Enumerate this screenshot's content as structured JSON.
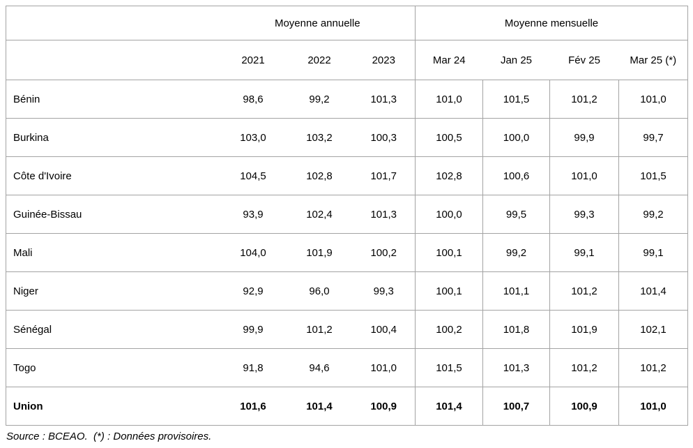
{
  "table": {
    "header": {
      "group_annual": "Moyenne annuelle",
      "group_monthly": "Moyenne mensuelle",
      "columns": [
        "2021",
        "2022",
        "2023",
        "Mar 24",
        "Jan 25",
        "Fév 25",
        "Mar 25 (*)"
      ]
    },
    "rows": [
      {
        "name": "Bénin",
        "values": [
          "98,6",
          "99,2",
          "101,3",
          "101,0",
          "101,5",
          "101,2",
          "101,0"
        ]
      },
      {
        "name": "Burkina",
        "values": [
          "103,0",
          "103,2",
          "100,3",
          "100,5",
          "100,0",
          "99,9",
          "99,7"
        ]
      },
      {
        "name": "Côte d'Ivoire",
        "values": [
          "104,5",
          "102,8",
          "101,7",
          "102,8",
          "100,6",
          "101,0",
          "101,5"
        ]
      },
      {
        "name": "Guinée-Bissau",
        "values": [
          "93,9",
          "102,4",
          "101,3",
          "100,0",
          "99,5",
          "99,3",
          "99,2"
        ]
      },
      {
        "name": "Mali",
        "values": [
          "104,0",
          "101,9",
          "100,2",
          "100,1",
          "99,2",
          "99,1",
          "99,1"
        ]
      },
      {
        "name": "Niger",
        "values": [
          "92,9",
          "96,0",
          "99,3",
          "100,1",
          "101,1",
          "101,2",
          "101,4"
        ]
      },
      {
        "name": "Sénégal",
        "values": [
          "99,9",
          "101,2",
          "100,4",
          "100,2",
          "101,8",
          "101,9",
          "102,1"
        ]
      },
      {
        "name": "Togo",
        "values": [
          "91,8",
          "94,6",
          "101,0",
          "101,5",
          "101,3",
          "101,2",
          "101,2"
        ]
      }
    ],
    "total_row": {
      "name": "Union",
      "values": [
        "101,6",
        "101,4",
        "100,9",
        "101,4",
        "100,7",
        "100,9",
        "101,0"
      ]
    }
  },
  "footer": {
    "source_note": "Source : BCEAO.  (*) : Données provisoires."
  },
  "colors": {
    "border": "#a3a3a3",
    "text": "#000000",
    "background": "#ffffff"
  }
}
